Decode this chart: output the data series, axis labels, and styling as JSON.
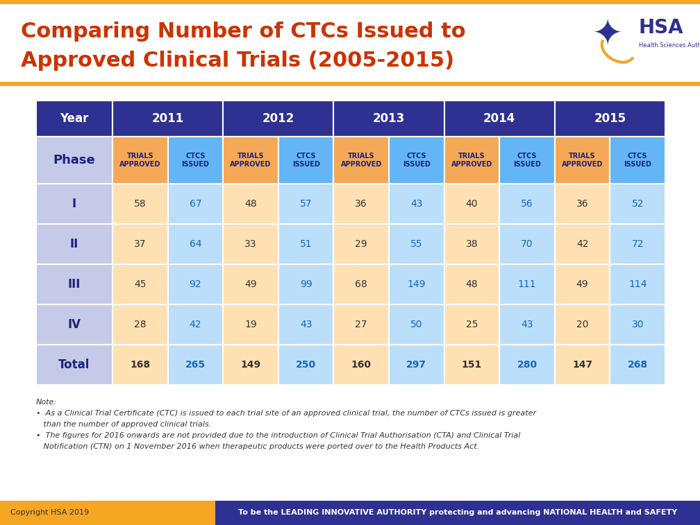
{
  "title_line1": "Comparing Number of CTCs Issued to",
  "title_line2": "Approved Clinical Trials (2005-2015)",
  "title_color": "#CC3300",
  "background_color": "#FFFFFF",
  "header_row_color": "#2E3192",
  "header_text_color": "#FFFFFF",
  "subheader_trials_bg": "#F5A855",
  "subheader_ctcs_bg": "#64B5F6",
  "subheader_text_color": "#1A237E",
  "phase_col_bg": "#C5CAE9",
  "phase_text_color": "#1A237E",
  "trials_cell_bg": "#FFE0B2",
  "ctcs_cell_bg": "#BBDEFB",
  "total_row_trials_bg": "#FFE0B2",
  "total_row_ctcs_bg": "#BBDEFB",
  "cell_text_color_trials": "#333333",
  "cell_text_color_ctcs": "#1565C0",
  "years": [
    "2011",
    "2012",
    "2013",
    "2014",
    "2015"
  ],
  "phases": [
    "I",
    "II",
    "III",
    "IV",
    "Total"
  ],
  "data": {
    "I": {
      "trials": [
        58,
        48,
        36,
        40,
        36
      ],
      "ctcs": [
        67,
        57,
        43,
        56,
        52
      ]
    },
    "II": {
      "trials": [
        37,
        33,
        29,
        38,
        42
      ],
      "ctcs": [
        64,
        51,
        55,
        70,
        72
      ]
    },
    "III": {
      "trials": [
        45,
        49,
        68,
        48,
        49
      ],
      "ctcs": [
        92,
        99,
        149,
        111,
        114
      ]
    },
    "IV": {
      "trials": [
        28,
        19,
        27,
        25,
        20
      ],
      "ctcs": [
        42,
        43,
        50,
        43,
        30
      ]
    },
    "Total": {
      "trials": [
        168,
        149,
        160,
        151,
        147
      ],
      "ctcs": [
        265,
        250,
        297,
        280,
        268
      ]
    }
  },
  "note_line0": "Note:",
  "note_line1": "•  As a Clinical Trial Certificate (CTC) is issued to each trial site of an approved clinical trial, the number of CTCs issued is greater",
  "note_line2": "   than the number of approved clinical trials.",
  "note_line3": "•  The figures for 2016 onwards are not provided due to the introduction of Clinical Trial Authorisation (CTA) and Clinical Trial",
  "note_line4": "   Notification (CTN) on 1 November 2016 when therapeutic products were ported over to the Health Products Act.",
  "footer_left": "Copyright HSA 2019",
  "footer_right": "To be the LEADING INNOVATIVE AUTHORITY protecting and advancing NATIONAL HEALTH and SAFETY",
  "footer_bg": "#2E3192",
  "footer_text_color": "#FFFFFF",
  "top_bar_color": "#F5A623",
  "separator_color": "#F5A623"
}
